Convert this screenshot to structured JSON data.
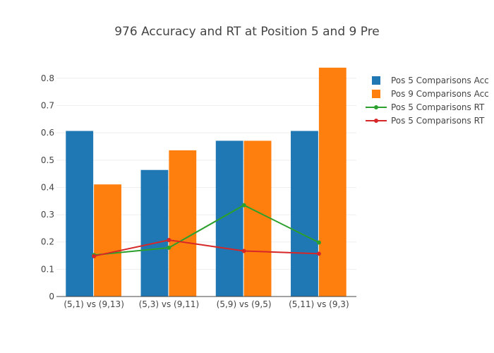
{
  "chart_data": {
    "type": "bar",
    "title": "976 Accuracy and RT at Position 5 and 9 Pre",
    "xlabel": "",
    "ylabel": "",
    "categories": [
      "(5,1) vs (9,13)",
      "(5,3) vs (9,11)",
      "(5,9) vs (9,5)",
      "(5,11) vs (9,3)"
    ],
    "ylim": [
      0,
      0.88
    ],
    "yticks": [
      0,
      0.1,
      0.2,
      0.3,
      0.4,
      0.5,
      0.6,
      0.7,
      0.8
    ],
    "ytick_labels": [
      "0",
      "0.1",
      "0.2",
      "0.3",
      "0.4",
      "0.5",
      "0.6",
      "0.7",
      "0.8"
    ],
    "grid": true,
    "legend_position": "top-right",
    "series": [
      {
        "name": "Pos 5 Comparisons Acc",
        "kind": "bar",
        "color": "#1f77b4",
        "values": [
          0.607,
          0.464,
          0.571,
          0.607
        ]
      },
      {
        "name": "Pos 9 Comparisons Acc",
        "kind": "bar",
        "color": "#ff7f0e",
        "values": [
          0.411,
          0.536,
          0.571,
          0.839
        ]
      },
      {
        "name": "Pos 5 Comparisons RT",
        "kind": "line",
        "color": "#2ca02c",
        "values": [
          0.152,
          0.179,
          0.335,
          0.198
        ]
      },
      {
        "name": "Pos 5 Comparisons RT",
        "kind": "line",
        "color": "#d62728",
        "values": [
          0.148,
          0.207,
          0.167,
          0.157
        ]
      }
    ]
  }
}
